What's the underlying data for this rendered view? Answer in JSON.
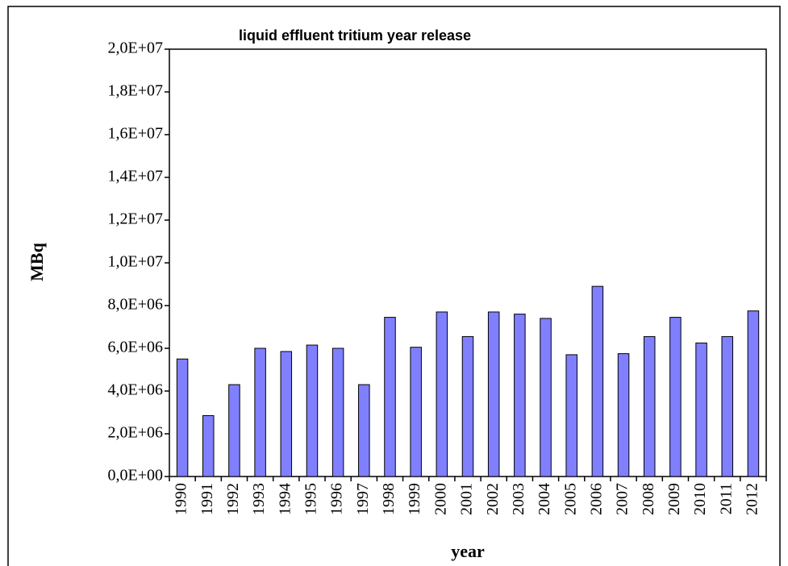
{
  "chart_data": {
    "type": "bar",
    "title": "liquid effluent tritium year release",
    "x_label": "year",
    "y_label": "MBq",
    "categories": [
      "1990",
      "1991",
      "1992",
      "1993",
      "1994",
      "1995",
      "1996",
      "1997",
      "1998",
      "1999",
      "2000",
      "2001",
      "2002",
      "2003",
      "2004",
      "2005",
      "2006",
      "2007",
      "2008",
      "2009",
      "2010",
      "2011",
      "2012"
    ],
    "values": [
      5500000,
      2850000,
      4300000,
      6000000,
      5850000,
      6150000,
      6000000,
      4300000,
      7450000,
      6050000,
      7700000,
      6550000,
      7700000,
      7600000,
      7400000,
      5700000,
      8900000,
      5750000,
      6550000,
      7450000,
      6250000,
      6550000,
      7750000
    ],
    "color": "#8080ff",
    "ylim": [
      0,
      20000000
    ],
    "yticks": [
      {
        "value": 0,
        "label": "0,0E+00"
      },
      {
        "value": 2000000,
        "label": "2,0E+06"
      },
      {
        "value": 4000000,
        "label": "4,0E+06"
      },
      {
        "value": 6000000,
        "label": "6,0E+06"
      },
      {
        "value": 8000000,
        "label": "8,0E+06"
      },
      {
        "value": 10000000,
        "label": "1,0E+07"
      },
      {
        "value": 12000000,
        "label": "1,2E+07"
      },
      {
        "value": 14000000,
        "label": "1,4E+07"
      },
      {
        "value": 16000000,
        "label": "1,6E+07"
      },
      {
        "value": 18000000,
        "label": "1,8E+07"
      },
      {
        "value": 20000000,
        "label": "2,0E+07"
      }
    ],
    "grid": false
  }
}
